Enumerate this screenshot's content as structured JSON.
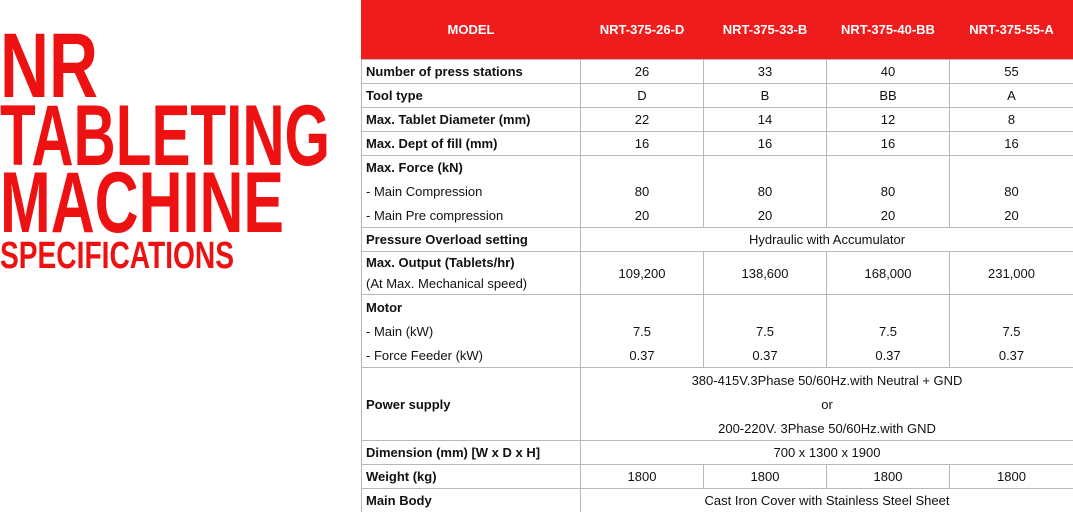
{
  "title": {
    "lines": [
      "NR",
      "TABLETING",
      "MACHINE"
    ],
    "subtitle": "SPECIFICATIONS"
  },
  "table": {
    "header": [
      "MODEL",
      "NRT-375-26-D",
      "NRT-375-33-B",
      "NRT-375-40-BB",
      "NRT-375-55-A"
    ],
    "rows": [
      {
        "label": "Number of press stations",
        "cells": [
          "26",
          "33",
          "40",
          "55"
        ]
      },
      {
        "label": "Tool type",
        "cells": [
          "D",
          "B",
          "BB",
          "A"
        ]
      },
      {
        "label": "Max. Tablet Diameter (mm)",
        "cells": [
          "22",
          "14",
          "12",
          "8"
        ]
      },
      {
        "label": "Max. Dept of fill (mm)",
        "cells": [
          "16",
          "16",
          "16",
          "16"
        ]
      },
      {
        "label": "Max. Force (kN)",
        "items": [
          {
            "label": "- Main Compression",
            "cells": [
              "80",
              "80",
              "80",
              "80"
            ]
          },
          {
            "label": "- Main Pre compression",
            "cells": [
              "20",
              "20",
              "20",
              "20"
            ]
          }
        ]
      },
      {
        "label": "Pressure Overload setting",
        "span": [
          "Hydraulic with Accumulator"
        ]
      },
      {
        "label": "Max. Output (Tablets/hr)",
        "note": "(At Max. Mechanical speed)",
        "cells": [
          "109,200",
          "138,600",
          "168,000",
          "231,000"
        ]
      },
      {
        "label": "Motor",
        "items": [
          {
            "label": "- Main (kW)",
            "cells": [
              "7.5",
              "7.5",
              "7.5",
              "7.5"
            ]
          },
          {
            "label": "- Force Feeder (kW)",
            "cells": [
              "0.37",
              "0.37",
              "0.37",
              "0.37"
            ]
          }
        ]
      },
      {
        "label": "Power supply",
        "span": [
          "380-415V.3Phase 50/60Hz.with Neutral + GND",
          "or",
          "200-220V. 3Phase 50/60Hz.with GND"
        ]
      },
      {
        "label": "Dimension (mm) [W x D x H]",
        "span": [
          "700 x 1300 x 1900"
        ]
      },
      {
        "label": "Weight (kg)",
        "cells": [
          "1800",
          "1800",
          "1800",
          "1800"
        ]
      },
      {
        "label": "Main Body",
        "span": [
          "Cast Iron Cover with Stainless Steel Sheet"
        ]
      }
    ]
  }
}
